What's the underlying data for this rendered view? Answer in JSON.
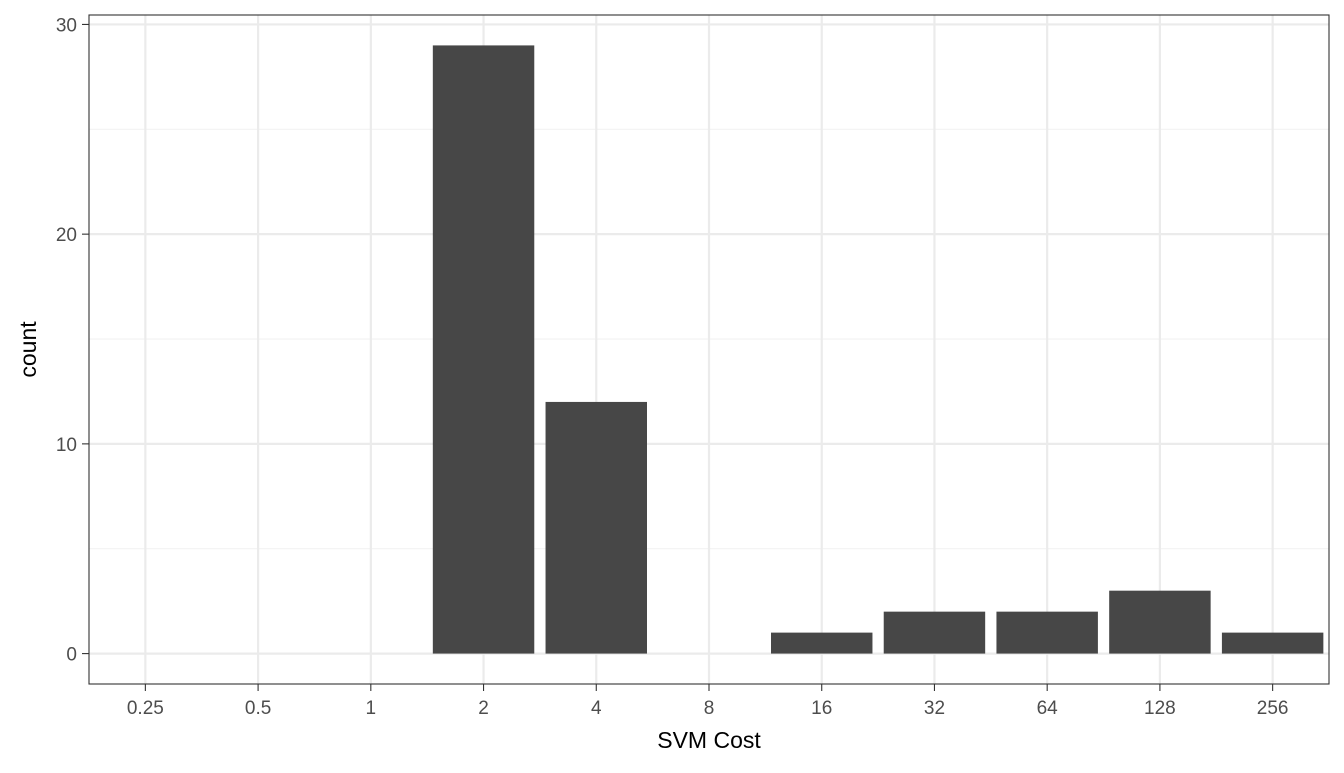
{
  "chart_data": {
    "type": "bar",
    "categories": [
      "0.25",
      "0.5",
      "1",
      "2",
      "4",
      "8",
      "16",
      "32",
      "64",
      "128",
      "256"
    ],
    "values": [
      0,
      0,
      0,
      29,
      12,
      0,
      1,
      2,
      2,
      3,
      1
    ],
    "xlabel": "SVM Cost",
    "ylabel": "count",
    "ylim": [
      -1.45,
      30.45
    ],
    "yticks": [
      0,
      10,
      20,
      30
    ],
    "y_minor_ticks": [
      5,
      15,
      25
    ],
    "grid": true,
    "theme": "bw",
    "colors": {
      "bar": "#474747",
      "grid_major": "#ebebeb",
      "grid_minor": "#f2f2f2",
      "panel_border": "#333333",
      "tick_text": "#4d4d4d",
      "axis_title": "#000000"
    }
  }
}
